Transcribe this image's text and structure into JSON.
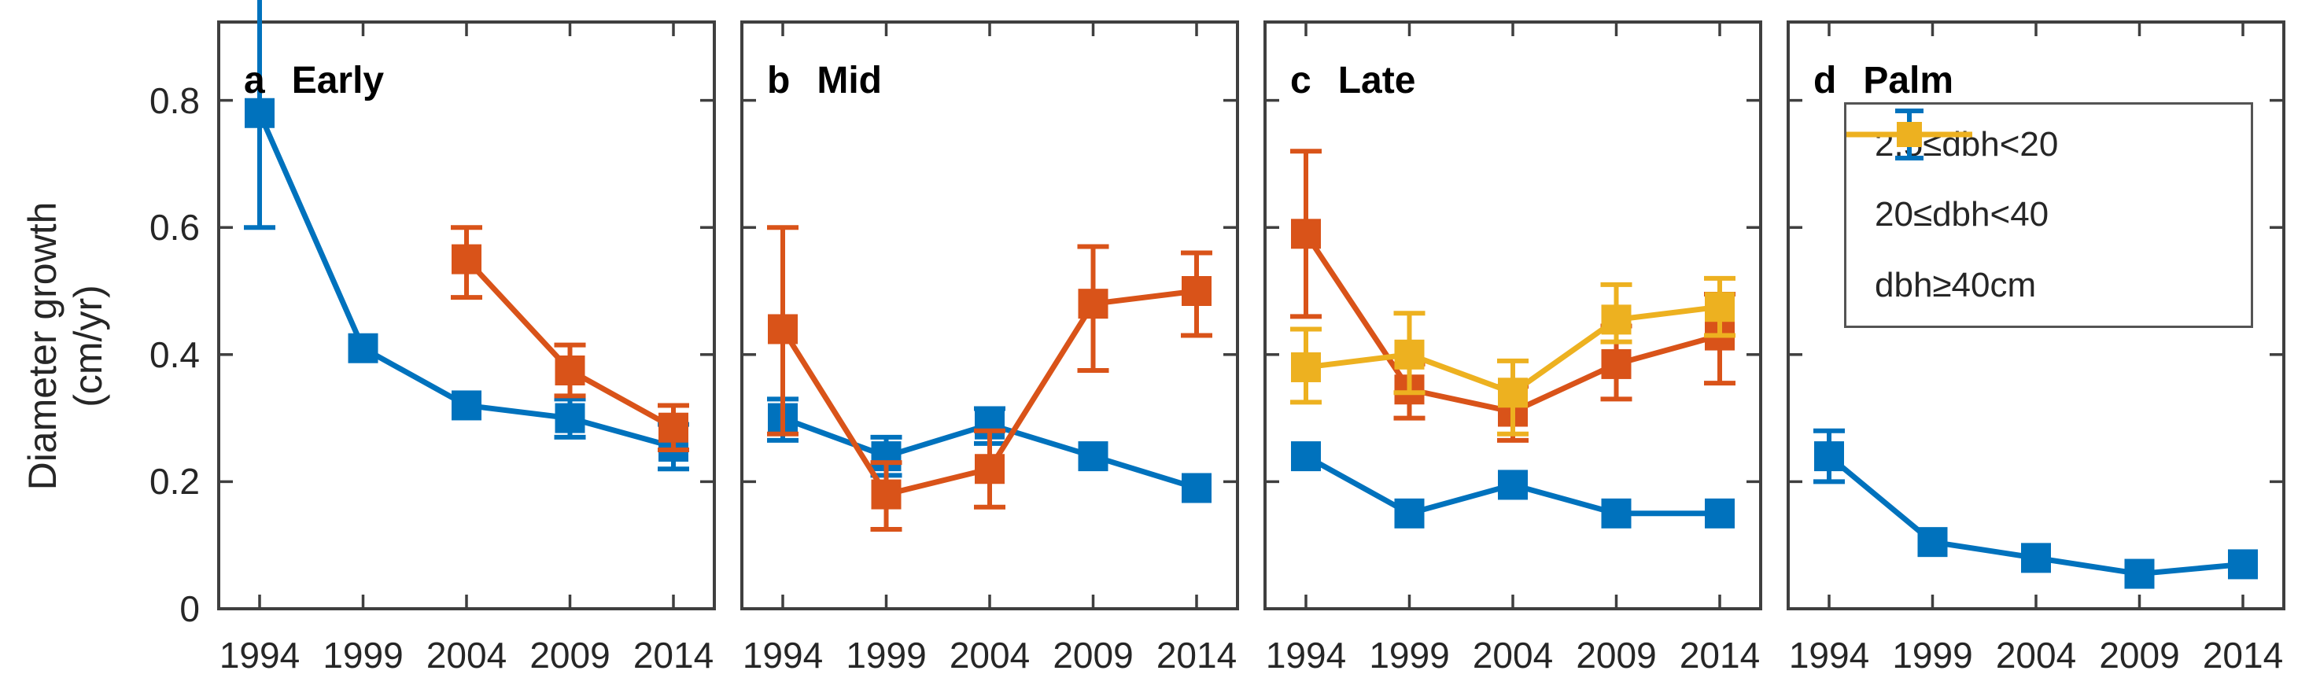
{
  "figure": {
    "ylabel_line1": "Diameter growth",
    "ylabel_line2": "(cm/yr)",
    "colors": {
      "blue": "#0072BD",
      "orange": "#D95319",
      "yellow": "#EDB120",
      "spine": "#3F3F3F",
      "text": "#262626"
    },
    "ytick_labels": [
      "0.8",
      "0.6",
      "0.4",
      "0.2",
      "0"
    ],
    "ytick_values": [
      0.8,
      0.6,
      0.4,
      0.2,
      0
    ]
  },
  "legend": {
    "entries": [
      {
        "label": "2.5≤dbh<20",
        "color_key": "blue",
        "error_glyph": true
      },
      {
        "label": "20≤dbh<40",
        "color_key": "orange",
        "error_glyph": false
      },
      {
        "label": "dbh≥40cm",
        "color_key": "yellow",
        "error_glyph": false
      }
    ]
  },
  "chart_data": {
    "type": "line",
    "title": "",
    "xlabel": "",
    "ylabel": "Diameter growth (cm/yr)",
    "x_years": [
      1994,
      1999,
      2004,
      2009,
      2014
    ],
    "ylim": [
      0,
      0.9
    ],
    "yticks": [
      0,
      0.2,
      0.4,
      0.6,
      0.8
    ],
    "grid": false,
    "legend_position": "panel-d-upper",
    "panels": [
      {
        "id": "a",
        "title": "Early",
        "series": [
          {
            "name": "2.5≤dbh<20",
            "color_key": "blue",
            "y": [
              0.78,
              0.41,
              0.32,
              0.3,
              0.255
            ],
            "lo": [
              0.6,
              null,
              null,
              0.27,
              0.22
            ],
            "hi": [
              0.96,
              null,
              null,
              0.33,
              0.29
            ]
          },
          {
            "name": "20≤dbh<40",
            "color_key": "orange",
            "y": [
              null,
              null,
              0.55,
              0.375,
              0.285
            ],
            "lo": [
              null,
              null,
              0.49,
              0.335,
              0.25
            ],
            "hi": [
              null,
              null,
              0.6,
              0.415,
              0.32
            ]
          }
        ]
      },
      {
        "id": "b",
        "title": "Mid",
        "series": [
          {
            "name": "2.5≤dbh<20",
            "color_key": "blue",
            "y": [
              0.3,
              0.24,
              0.29,
              0.24,
              0.19
            ],
            "lo": [
              0.265,
              0.21,
              0.26,
              null,
              null
            ],
            "hi": [
              0.33,
              0.27,
              0.315,
              null,
              null
            ]
          },
          {
            "name": "20≤dbh<40",
            "color_key": "orange",
            "y": [
              0.44,
              0.18,
              0.22,
              0.48,
              0.5
            ],
            "lo": [
              0.275,
              0.125,
              0.16,
              0.375,
              0.43
            ],
            "hi": [
              0.6,
              0.23,
              0.28,
              0.57,
              0.56
            ]
          }
        ]
      },
      {
        "id": "c",
        "title": "Late",
        "series": [
          {
            "name": "2.5≤dbh<20",
            "color_key": "blue",
            "y": [
              0.24,
              0.15,
              0.195,
              0.15,
              0.15
            ],
            "lo": [
              null,
              null,
              null,
              null,
              null
            ],
            "hi": [
              null,
              null,
              null,
              null,
              null
            ]
          },
          {
            "name": "20≤dbh<40",
            "color_key": "orange",
            "y": [
              0.59,
              0.345,
              0.31,
              0.385,
              0.43
            ],
            "lo": [
              0.46,
              0.3,
              0.265,
              0.33,
              0.355
            ],
            "hi": [
              0.72,
              0.385,
              0.35,
              0.445,
              0.495
            ]
          },
          {
            "name": "dbh≥40cm",
            "color_key": "yellow",
            "y": [
              0.38,
              0.4,
              0.34,
              0.455,
              0.475
            ],
            "lo": [
              0.325,
              0.34,
              0.275,
              0.42,
              0.43
            ],
            "hi": [
              0.44,
              0.465,
              0.39,
              0.51,
              0.52
            ]
          }
        ]
      },
      {
        "id": "d",
        "title": "Palm",
        "series": [
          {
            "name": "2.5≤dbh<20",
            "color_key": "blue",
            "y": [
              0.24,
              0.105,
              0.08,
              0.055,
              0.07
            ],
            "lo": [
              0.2,
              null,
              null,
              null,
              null
            ],
            "hi": [
              0.28,
              null,
              null,
              null,
              null
            ]
          }
        ]
      }
    ]
  }
}
